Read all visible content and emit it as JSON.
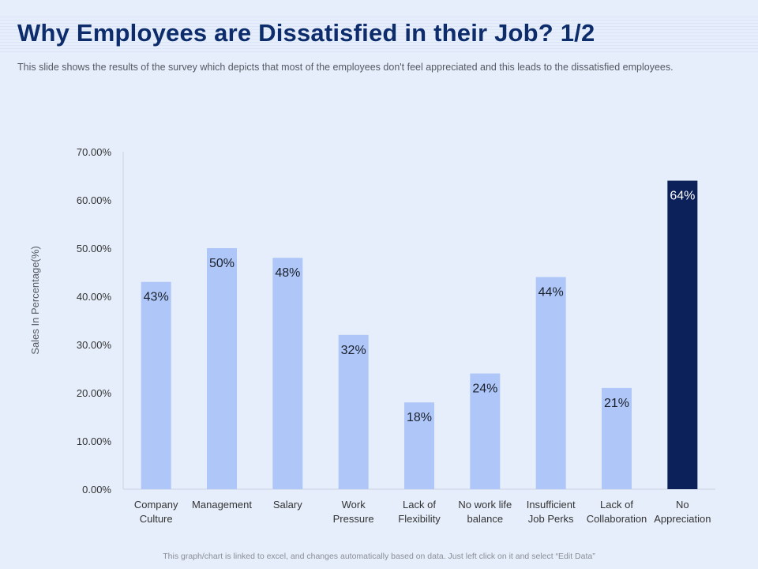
{
  "header": {
    "title": "Why Employees are Dissatisfied in their Job? 1/2",
    "subtitle": "This slide shows the results of the survey which depicts that most of the employees don't feel appreciated and this leads to the dissatisfied employees."
  },
  "footer": {
    "note": "This graph/chart is linked to excel, and changes automatically based on data. Just left click on it and select “Edit Data”"
  },
  "colors": {
    "bar": "#aec7f8",
    "highlight": "#0c215a",
    "axis_text": "#333333",
    "ylabel_text": "#555a63"
  },
  "chart_data": {
    "type": "bar",
    "title": "",
    "xlabel": "",
    "ylabel": "Sales In Percentage(%)",
    "ylim": [
      0,
      70
    ],
    "yticks": [
      "0.00%",
      "10.00%",
      "20.00%",
      "30.00%",
      "40.00%",
      "50.00%",
      "60.00%",
      "70.00%"
    ],
    "grid": false,
    "categories": [
      [
        "Company",
        "Culture"
      ],
      [
        "Management"
      ],
      [
        "Salary"
      ],
      [
        "Work",
        "Pressure"
      ],
      [
        "Lack of",
        "Flexibility"
      ],
      [
        "No work life",
        "balance"
      ],
      [
        "Insufficient",
        "Job Perks"
      ],
      [
        "Lack of",
        "Collaboration"
      ],
      [
        "No",
        "Appreciation"
      ]
    ],
    "values": [
      43,
      50,
      48,
      32,
      18,
      24,
      44,
      21,
      64
    ],
    "data_labels": [
      "43%",
      "50%",
      "48%",
      "32%",
      "18%",
      "24%",
      "44%",
      "21%",
      "64%"
    ],
    "highlight_index": 8
  }
}
